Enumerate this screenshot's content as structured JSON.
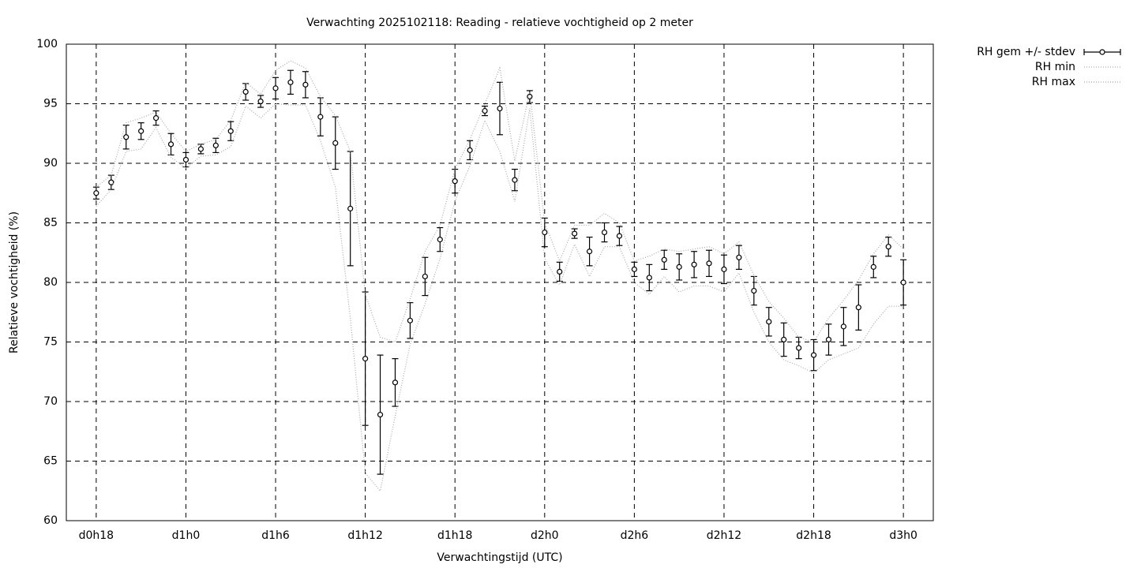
{
  "chart_data": {
    "type": "errorbar-line",
    "title": "Verwachting 2025102118: Reading - relatieve vochtigheid op 2 meter",
    "x_label": "Verwachtingstijd (UTC)",
    "y_label": "Relatieve vochtigheid (%)",
    "x": [
      18,
      19,
      20,
      21,
      22,
      23,
      24,
      25,
      26,
      27,
      28,
      29,
      30,
      31,
      32,
      33,
      34,
      35,
      36,
      37,
      38,
      39,
      40,
      41,
      42,
      43,
      44,
      45,
      46,
      47,
      48,
      49,
      50,
      51,
      52,
      53,
      54,
      55,
      56,
      57,
      58,
      59,
      60,
      61,
      62,
      63,
      64,
      65,
      66,
      67,
      68,
      69,
      70,
      71,
      72
    ],
    "xlim": [
      16,
      74
    ],
    "xticks": [
      {
        "value": 18,
        "label": "d0h18"
      },
      {
        "value": 24,
        "label": "d1h0"
      },
      {
        "value": 30,
        "label": "d1h6"
      },
      {
        "value": 36,
        "label": "d1h12"
      },
      {
        "value": 42,
        "label": "d1h18"
      },
      {
        "value": 48,
        "label": "d2h0"
      },
      {
        "value": 54,
        "label": "d2h6"
      },
      {
        "value": 60,
        "label": "d2h12"
      },
      {
        "value": 66,
        "label": "d2h18"
      },
      {
        "value": 72,
        "label": "d3h0"
      }
    ],
    "ylim": [
      60,
      100
    ],
    "yticks": [
      60,
      65,
      70,
      75,
      80,
      85,
      90,
      95,
      100
    ],
    "grid": true,
    "legend": "outside-top-right",
    "series": [
      {
        "name": "RH gem +/- stdev",
        "color": "#000000",
        "values": [
          87.5,
          88.4,
          92.2,
          92.7,
          93.8,
          91.6,
          90.3,
          91.2,
          91.5,
          92.7,
          96.0,
          95.2,
          96.3,
          96.8,
          96.6,
          93.9,
          91.7,
          86.2,
          73.6,
          68.9,
          71.6,
          76.8,
          80.5,
          83.6,
          88.5,
          91.1,
          94.4,
          94.6,
          88.6,
          95.6,
          84.2,
          80.9,
          84.1,
          82.6,
          84.2,
          83.9,
          81.1,
          80.4,
          81.9,
          81.3,
          81.5,
          81.6,
          81.1,
          82.1,
          79.3,
          76.7,
          75.2,
          74.5,
          73.9,
          75.2,
          76.3,
          77.9,
          81.3,
          83.0,
          80.0
        ],
        "errors": [
          0.5,
          0.6,
          1.0,
          0.7,
          0.6,
          0.9,
          0.6,
          0.4,
          0.6,
          0.8,
          0.7,
          0.5,
          0.9,
          1.0,
          1.1,
          1.6,
          2.2,
          4.8,
          5.6,
          5.0,
          2.0,
          1.5,
          1.6,
          1.0,
          1.0,
          0.8,
          0.4,
          2.2,
          0.9,
          0.5,
          1.2,
          0.8,
          0.4,
          1.2,
          0.8,
          0.8,
          0.6,
          1.1,
          0.8,
          1.1,
          1.1,
          1.1,
          1.2,
          1.0,
          1.2,
          1.2,
          1.4,
          0.9,
          1.3,
          1.3,
          1.6,
          1.9,
          0.9,
          0.8,
          1.9
        ]
      },
      {
        "name": "RH min",
        "color": "#aaaaaa",
        "values": [
          86.4,
          87.8,
          91.0,
          91.2,
          93.0,
          90.5,
          89.6,
          90.6,
          90.7,
          91.4,
          94.8,
          93.8,
          95.0,
          94.9,
          94.9,
          91.9,
          88.0,
          77.0,
          64.0,
          62.5,
          68.8,
          74.8,
          78.2,
          82.0,
          86.8,
          89.8,
          93.6,
          91.0,
          86.8,
          94.6,
          82.0,
          79.8,
          83.2,
          80.5,
          83.0,
          83.0,
          80.0,
          79.0,
          80.5,
          79.2,
          79.7,
          79.7,
          79.2,
          80.8,
          77.5,
          75.0,
          73.5,
          73.0,
          72.4,
          73.5,
          74.0,
          74.5,
          76.5,
          78.0,
          78.0
        ]
      },
      {
        "name": "RH max",
        "color": "#aaaaaa",
        "values": [
          88.0,
          89.0,
          93.4,
          93.8,
          94.3,
          92.5,
          91.0,
          91.6,
          92.0,
          93.6,
          96.8,
          95.8,
          97.8,
          98.6,
          98.0,
          95.6,
          94.0,
          91.0,
          79.0,
          75.4,
          75.0,
          78.6,
          82.6,
          84.8,
          89.5,
          92.0,
          95.0,
          98.0,
          90.2,
          96.0,
          85.0,
          81.8,
          84.8,
          84.8,
          85.8,
          85.0,
          81.8,
          82.2,
          82.8,
          82.6,
          82.8,
          83.0,
          82.4,
          83.4,
          80.6,
          78.4,
          77.0,
          75.4,
          75.0,
          77.0,
          78.5,
          80.2,
          82.4,
          84.0,
          82.8
        ]
      }
    ]
  }
}
